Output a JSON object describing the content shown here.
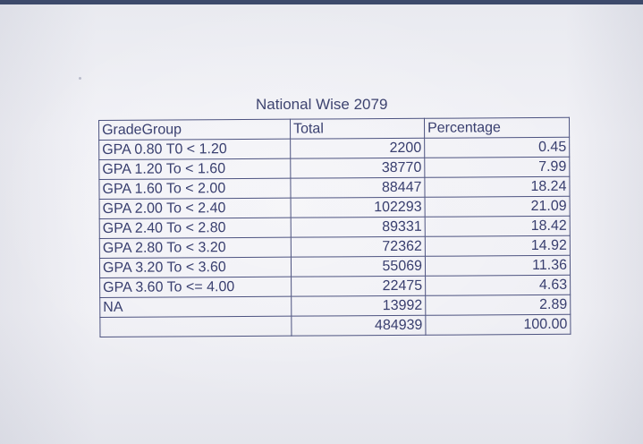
{
  "title": "National Wise 2079",
  "headers": {
    "grade": "GradeGroup",
    "total": "Total",
    "percentage": "Percentage"
  },
  "rows": [
    {
      "grade": "GPA 0.80 T0 < 1.20",
      "total": "2200",
      "percentage": "0.45"
    },
    {
      "grade": "GPA 1.20 To < 1.60",
      "total": "38770",
      "percentage": "7.99"
    },
    {
      "grade": "GPA 1.60 To < 2.00",
      "total": "88447",
      "percentage": "18.24"
    },
    {
      "grade": "GPA 2.00 To < 2.40",
      "total": "102293",
      "percentage": "21.09"
    },
    {
      "grade": "GPA 2.40 To < 2.80",
      "total": "89331",
      "percentage": "18.42"
    },
    {
      "grade": "GPA 2.80 To < 3.20",
      "total": "72362",
      "percentage": "14.92"
    },
    {
      "grade": "GPA 3.20 To < 3.60",
      "total": "55069",
      "percentage": "11.36"
    },
    {
      "grade": "GPA 3.60 To <= 4.00",
      "total": "22475",
      "percentage": "4.63"
    },
    {
      "grade": "NA",
      "total": "13992",
      "percentage": "2.89"
    },
    {
      "grade": "",
      "total": "484939",
      "percentage": "100.00"
    }
  ]
}
